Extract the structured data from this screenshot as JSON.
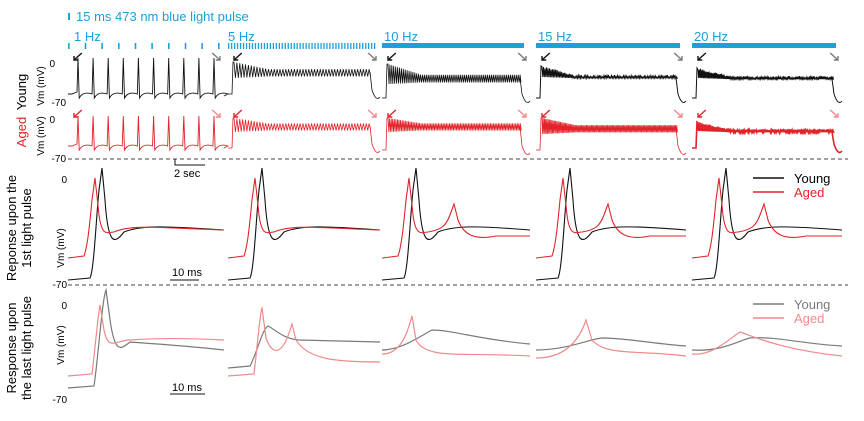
{
  "legend_pulse": "15 ms 473 nm blue light pulse",
  "colors": {
    "blue": "#1aa0db",
    "young": "#111111",
    "aged": "#e0242a",
    "young_light": "#7a7a7a",
    "aged_light": "#ef8a8a"
  },
  "frequencies": [
    "1 Hz",
    "5 Hz",
    "10 Hz",
    "15 Hz",
    "20 Hz"
  ],
  "row_labels": {
    "young": "Young",
    "aged": "Aged",
    "first_pulse": [
      "Reponse upon the",
      "1st light pulse"
    ],
    "last_pulse": [
      "Response upon",
      "the last light pulse"
    ]
  },
  "axis": {
    "vm": "Vm (mV)",
    "vm_spaced": "Vm  (mV)",
    "zero": "0",
    "minus70": "-70"
  },
  "scalebars": {
    "time_long": "2 sec",
    "time_short": "10 ms"
  },
  "legends": {
    "first": {
      "young": "Young",
      "aged": "Aged"
    },
    "last": {
      "young": "Young",
      "aged": "Aged"
    }
  }
}
